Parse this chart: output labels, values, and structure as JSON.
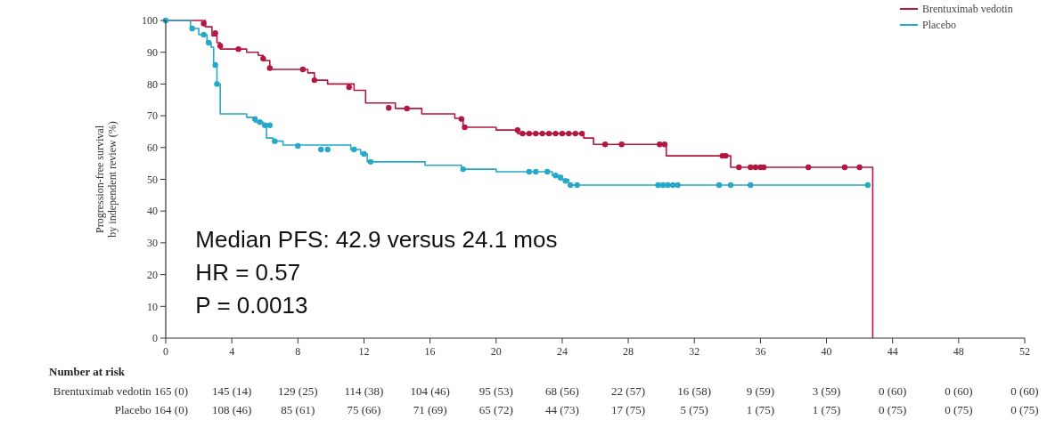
{
  "chart_data": {
    "type": "step",
    "ylabel": "Progression-free survival\nby independent review (%)",
    "xlim": [
      0,
      52
    ],
    "xticks": [
      0,
      4,
      8,
      12,
      16,
      20,
      24,
      28,
      32,
      36,
      40,
      44,
      48,
      52
    ],
    "ylim": [
      0,
      100
    ],
    "yticks": [
      0,
      10,
      20,
      30,
      40,
      50,
      60,
      70,
      80,
      90,
      100
    ],
    "legend": "top right",
    "grid": false,
    "line_style": "solid",
    "series": [
      {
        "name": "Brentuximab vedotin",
        "color": "#b5163f",
        "x": [
          0,
          2.4,
          2.8,
          3.1,
          3.3,
          4.9,
          5.6,
          5.9,
          6.3,
          8.6,
          9.0,
          9.8,
          11.4,
          12.1,
          13.9,
          15.5,
          17.5,
          18.0,
          20.0,
          21.3,
          25.3,
          25.9,
          30.3,
          34.2,
          42.8
        ],
        "values": [
          100,
          98,
          95.2,
          93,
          91,
          90,
          89,
          87.4,
          84.6,
          83.5,
          81.2,
          80,
          78,
          74,
          72.3,
          70.6,
          69.2,
          66.4,
          65.5,
          64.4,
          63,
          61,
          57.4,
          53.8,
          0
        ]
      },
      {
        "name": "Placebo",
        "color": "#26a8c8",
        "x": [
          0,
          1.5,
          2.0,
          2.5,
          2.75,
          2.9,
          3.1,
          3.3,
          4.9,
          5.4,
          5.9,
          6.1,
          6.5,
          7.1,
          11.2,
          11.8,
          12.2,
          15.7,
          17.9,
          20.0,
          23.4,
          24.0,
          24.4,
          42.5
        ],
        "values": [
          100,
          97.5,
          95.5,
          93,
          91.6,
          85.4,
          80,
          70.6,
          69.5,
          68,
          67.2,
          63,
          62,
          60.8,
          59.4,
          58,
          55.5,
          54.4,
          53.2,
          52.4,
          51.2,
          49.9,
          48.2,
          48.2
        ]
      },
      {
        "type": "scatter",
        "marker": "circle",
        "color": "#b5163f",
        "x": [
          2.3,
          3.0,
          3.3,
          4.4,
          5.9,
          6.3,
          8.3,
          9.0,
          11.1,
          13.5,
          14.6,
          17.9,
          18.1,
          21.3,
          21.6,
          22.0,
          22.4,
          22.8,
          23.2,
          23.6,
          24.0,
          24.4,
          24.8,
          25.2,
          26.6,
          27.6,
          29.9,
          30.2,
          33.7,
          33.9,
          34.7,
          35.4,
          35.7,
          36.0,
          36.2,
          38.9,
          41.1,
          42.0
        ],
        "values": [
          99,
          96,
          92,
          91,
          88,
          85,
          84.6,
          81.2,
          79,
          72.5,
          72.3,
          69,
          66.4,
          65.5,
          64.4,
          64.4,
          64.4,
          64.4,
          64.4,
          64.4,
          64.4,
          64.4,
          64.4,
          64.4,
          61,
          61,
          61,
          61,
          57.4,
          57.4,
          53.8,
          53.8,
          53.8,
          53.8,
          53.8,
          53.8,
          53.8,
          53.8
        ]
      },
      {
        "type": "scatter",
        "marker": "circle",
        "color": "#26a8c8",
        "x": [
          0,
          1.6,
          2.3,
          2.6,
          3.0,
          3.1,
          5.4,
          5.7,
          6.0,
          6.3,
          6.6,
          8.0,
          9.4,
          9.8,
          11.4,
          12.0,
          12.4,
          18.0,
          22.0,
          22.4,
          23.1,
          23.6,
          23.9,
          24.2,
          24.5,
          24.9,
          29.8,
          30.1,
          30.4,
          30.7,
          31.0,
          33.5,
          34.2,
          35.4,
          42.5
        ],
        "values": [
          100,
          97.5,
          95.5,
          93,
          86,
          80,
          69,
          68,
          67,
          67,
          62,
          60.5,
          59.4,
          59.4,
          59.4,
          58,
          55.5,
          53.2,
          52.4,
          52.4,
          52.4,
          51.2,
          50.5,
          49.5,
          48.2,
          48.2,
          48.2,
          48.2,
          48.2,
          48.2,
          48.2,
          48.2,
          48.2,
          48.2,
          48.2
        ]
      }
    ],
    "annotations": [
      "Median PFS: 42.9 versus 24.1 mos",
      "HR = 0.57",
      "P = 0.0013",
      "Number at risk",
      "Brentuximab vedotin 165 (0)",
      "145 (14)",
      "129 (25)",
      "114 (38)",
      "104 (46)",
      "95 (53)",
      "68 (56)",
      "22 (57)",
      "16 (58)",
      "9 (59)",
      "3 (59)",
      "0 (60)",
      "0 (60)",
      "0 (60)",
      "Placebo 164 (0)",
      "108 (46)",
      "85 (61)",
      "75 (66)",
      "71 (69)",
      "65 (72)",
      "44 (73)",
      "17 (75)",
      "5 (75)",
      "1 (75)",
      "1 (75)",
      "0 (75)",
      "0 (75)",
      "0 (75)"
    ]
  }
}
